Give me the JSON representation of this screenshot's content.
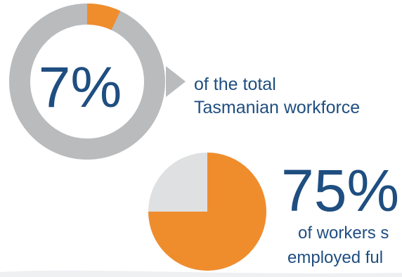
{
  "chart_data": [
    {
      "type": "pie",
      "style": "donut",
      "value": 7,
      "label": "7%",
      "caption": [
        "of the total",
        "Tasmanian workforce"
      ],
      "colors": {
        "highlight": "#ef8d2d",
        "remainder": "#b9bbbd"
      }
    },
    {
      "type": "pie",
      "value": 75,
      "label": "75%",
      "caption": [
        "of workers s",
        "employed ful"
      ],
      "colors": {
        "highlight": "#ef8d2d",
        "remainder": "#dfe0e1"
      }
    }
  ],
  "colors": {
    "text": "#1f4e80"
  }
}
